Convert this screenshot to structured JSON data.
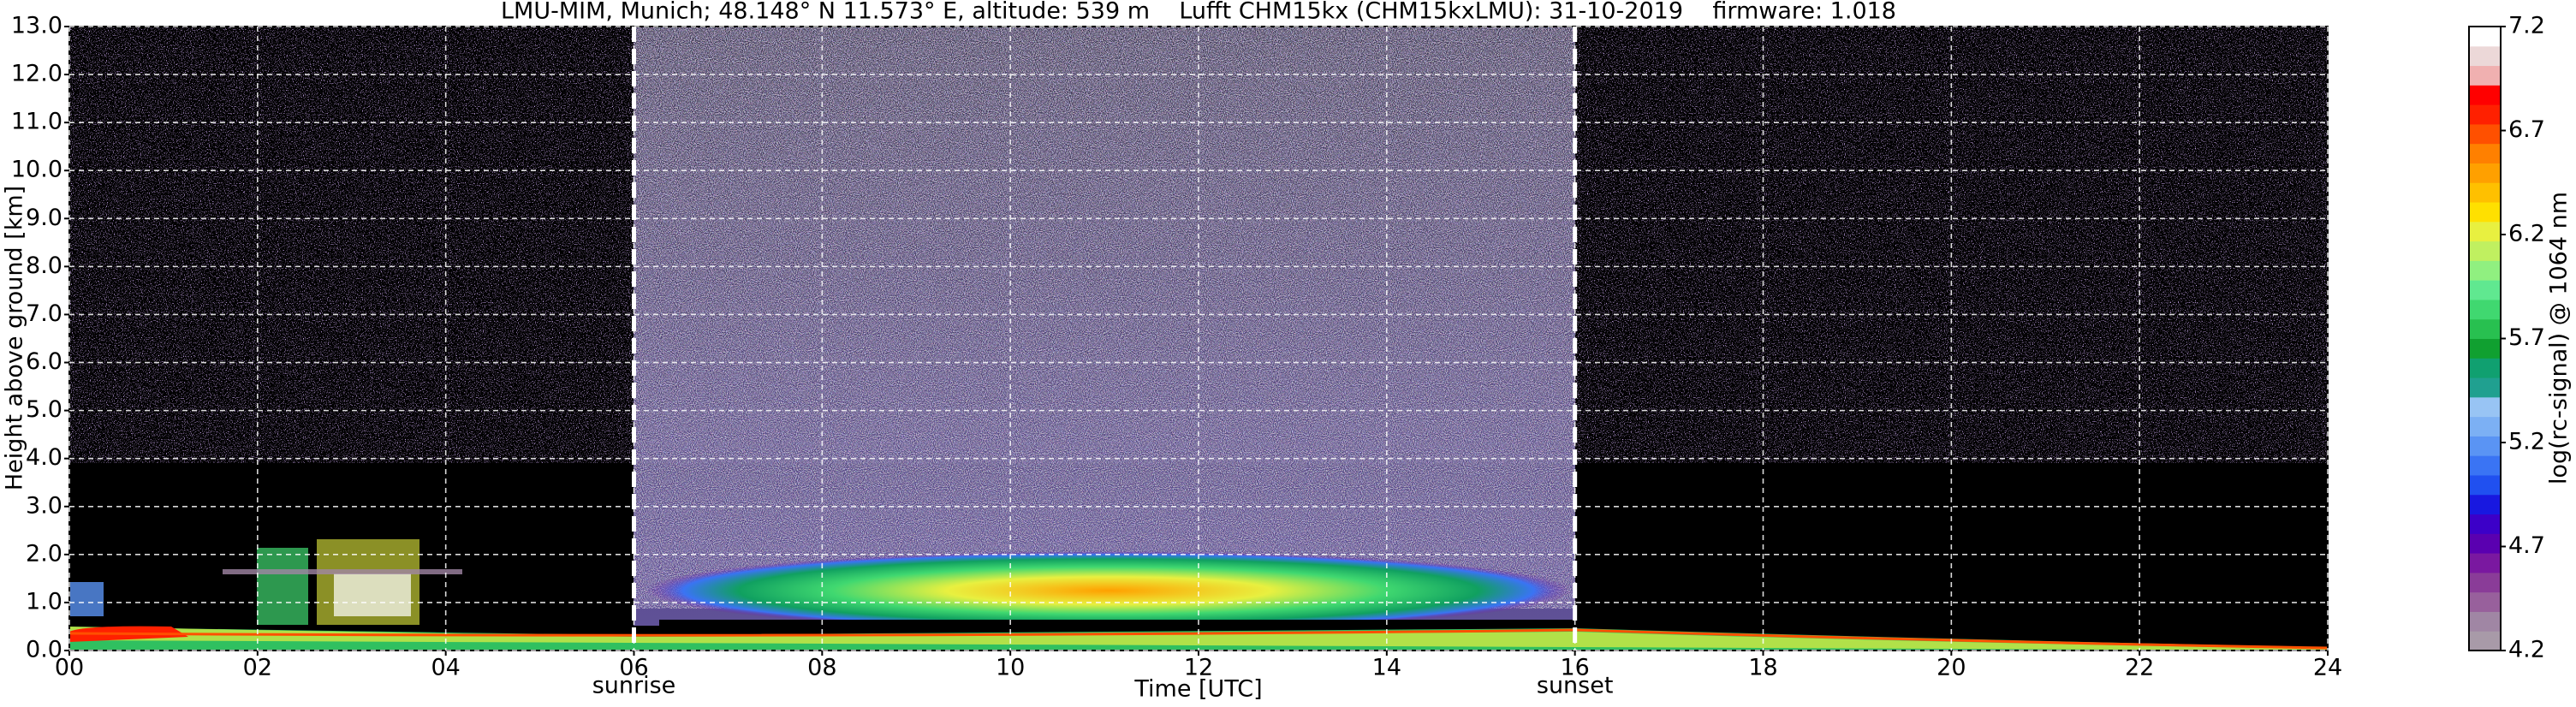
{
  "chart_data": {
    "type": "heatmap",
    "title": "LMU-MIM, Munich; 48.148° N 11.573° E, altitude: 539 m    Lufft CHM15kx (CHM15kxLMU): 31-10-2019    firmware: 1.018",
    "x_label": "Time [UTC]",
    "y_label": "Height above ground [km]",
    "xlim": [
      0,
      24
    ],
    "xticks": [
      {
        "value": 0,
        "label": "00"
      },
      {
        "value": 2,
        "label": "02"
      },
      {
        "value": 4,
        "label": "04"
      },
      {
        "value": 6,
        "label": "06"
      },
      {
        "value": 8,
        "label": "08"
      },
      {
        "value": 10,
        "label": "10"
      },
      {
        "value": 12,
        "label": "12"
      },
      {
        "value": 14,
        "label": "14"
      },
      {
        "value": 16,
        "label": "16"
      },
      {
        "value": 18,
        "label": "18"
      },
      {
        "value": 20,
        "label": "20"
      },
      {
        "value": 22,
        "label": "22"
      },
      {
        "value": 24,
        "label": "24"
      }
    ],
    "ylim": [
      0,
      13
    ],
    "yticks": [
      {
        "value": 0,
        "label": "0.0"
      },
      {
        "value": 1,
        "label": "1.0"
      },
      {
        "value": 2,
        "label": "2.0"
      },
      {
        "value": 3,
        "label": "3.0"
      },
      {
        "value": 4,
        "label": "4.0"
      },
      {
        "value": 5,
        "label": "5.0"
      },
      {
        "value": 6,
        "label": "6.0"
      },
      {
        "value": 7,
        "label": "7.0"
      },
      {
        "value": 8,
        "label": "8.0"
      },
      {
        "value": 9,
        "label": "9.0"
      },
      {
        "value": 10,
        "label": "10.0"
      },
      {
        "value": 11,
        "label": "11.0"
      },
      {
        "value": 12,
        "label": "12.0"
      },
      {
        "value": 13,
        "label": "13.0"
      }
    ],
    "grid": true,
    "colorbar": {
      "label": "log(rc-signal) @ 1064 nm",
      "lim": [
        4.2,
        7.2
      ],
      "ticks": [
        4.2,
        4.7,
        5.2,
        5.7,
        6.2,
        6.7,
        7.2
      ],
      "colors": [
        "#a89aa8",
        "#a086a4",
        "#98609c",
        "#8a3c98",
        "#7a18a0",
        "#5a00b0",
        "#3c00c8",
        "#1818e0",
        "#2050f0",
        "#3a74f4",
        "#5a94f4",
        "#7cb0f4",
        "#98c4f4",
        "#20a090",
        "#10a070",
        "#10a030",
        "#28c050",
        "#40d870",
        "#60e890",
        "#90f080",
        "#c0f060",
        "#e8f040",
        "#ffe000",
        "#ffc000",
        "#ffa000",
        "#ff8000",
        "#ff5000",
        "#ff2000",
        "#ff0000",
        "#f0b0b0",
        "#ecd8d8",
        "#ffffff"
      ]
    },
    "annotations": [
      {
        "x": 6,
        "text": "sunrise"
      },
      {
        "x": 16,
        "text": "sunset"
      }
    ]
  }
}
